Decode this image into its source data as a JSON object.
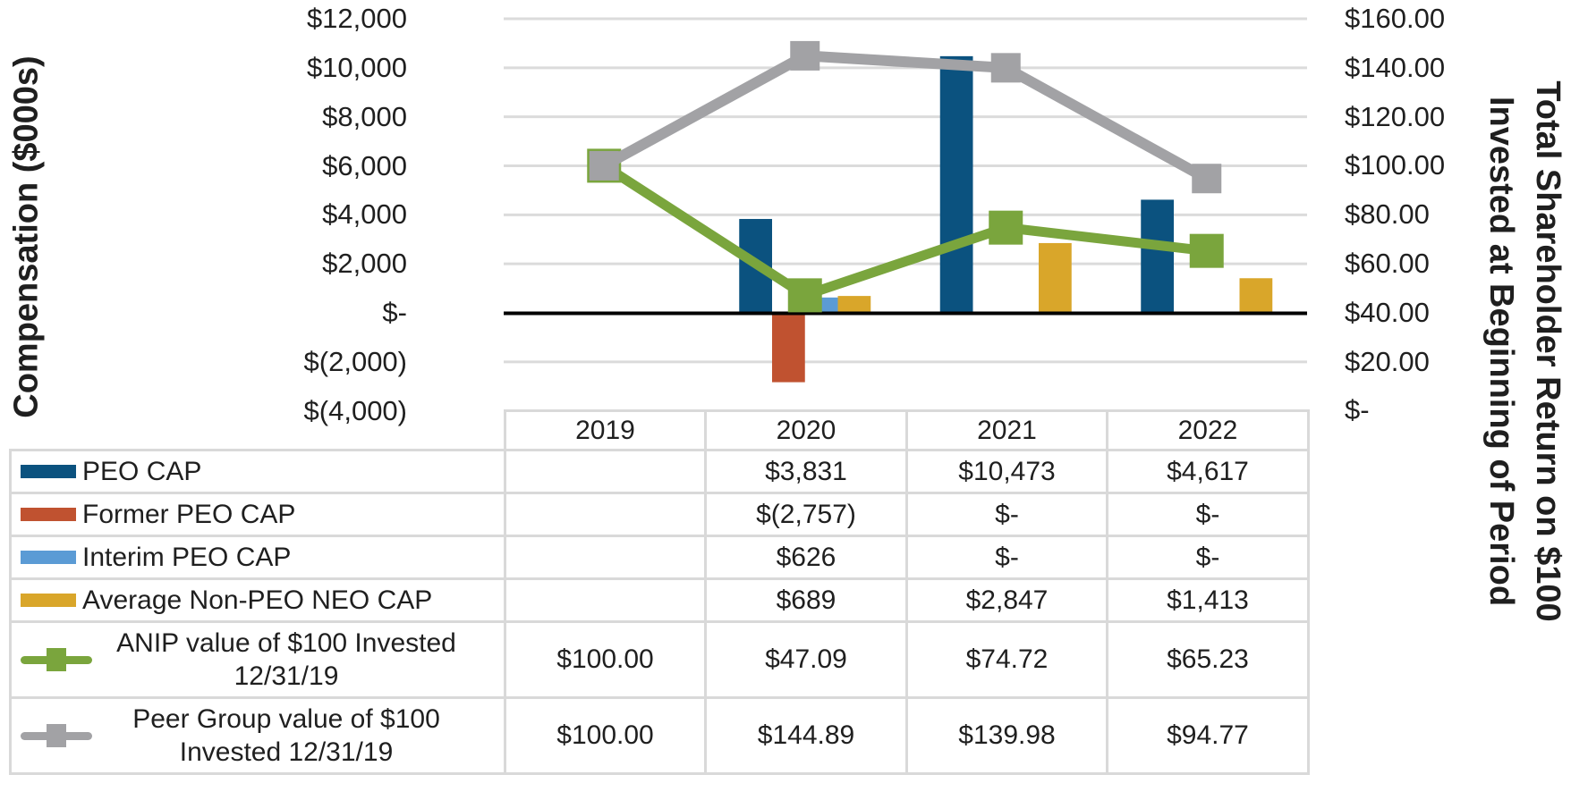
{
  "left_axis": {
    "title": "Compensation ($000s)",
    "tick_labels": [
      "$12,000",
      "$10,000",
      "$8,000",
      "$6,000",
      "$4,000",
      "$2,000",
      "$-",
      "$(2,000)",
      "$(4,000)"
    ],
    "tick_values": [
      12000,
      10000,
      8000,
      6000,
      4000,
      2000,
      0,
      -2000,
      -4000
    ],
    "range": [
      -4000,
      12000
    ]
  },
  "right_axis": {
    "title_line1": "Total Shareholder Return on $100",
    "title_line2": "Invested at Beginning of Period",
    "tick_labels": [
      "$160.00",
      "$140.00",
      "$120.00",
      "$100.00",
      "$80.00",
      "$60.00",
      "$40.00",
      "$20.00",
      "$-"
    ],
    "tick_values": [
      160,
      140,
      120,
      100,
      80,
      60,
      40,
      20,
      0
    ],
    "range": [
      0,
      160
    ]
  },
  "chart_data": {
    "type": "combo bar+line",
    "categories": [
      "2019",
      "2020",
      "2021",
      "2022"
    ],
    "bar_series": [
      {
        "name": "PEO CAP",
        "color": "#0B527F",
        "axis": "left",
        "values": [
          null,
          3831,
          10473,
          4617
        ],
        "labels": [
          "",
          "$3,831",
          "$10,473",
          "$4,617"
        ]
      },
      {
        "name": "Former PEO CAP",
        "color": "#C05230",
        "axis": "left",
        "values": [
          null,
          -2757,
          0,
          0
        ],
        "labels": [
          "",
          "$(2,757)",
          "$-",
          "$-"
        ]
      },
      {
        "name": "Interim PEO CAP",
        "color": "#5B9BD5",
        "axis": "left",
        "values": [
          null,
          626,
          0,
          0
        ],
        "labels": [
          "",
          "$626",
          "$-",
          "$-"
        ]
      },
      {
        "name": "Average Non-PEO NEO CAP",
        "color": "#D9A62A",
        "axis": "left",
        "values": [
          null,
          689,
          2847,
          1413
        ],
        "labels": [
          "",
          "$689",
          "$2,847",
          "$1,413"
        ]
      }
    ],
    "line_series": [
      {
        "name": "ANIP value of $100 Invested 12/31/19",
        "color": "#7AA53D",
        "axis": "right",
        "values": [
          100,
          47.09,
          74.72,
          65.23
        ],
        "labels": [
          "$100.00",
          "$47.09",
          "$74.72",
          "$65.23"
        ]
      },
      {
        "name": "Peer Group value of $100 Invested 12/31/19",
        "color": "#A2A2A5",
        "axis": "right",
        "values": [
          100,
          144.89,
          139.98,
          94.77
        ],
        "labels": [
          "$100.00",
          "$144.89",
          "$139.98",
          "$94.77"
        ]
      }
    ],
    "left_axis_range": [
      -4000,
      12000
    ],
    "right_axis_range": [
      0,
      160
    ],
    "gridlines": {
      "color": "#DBDBDB",
      "left_values": [
        12000,
        10000,
        8000,
        6000,
        4000,
        2000,
        -2000
      ]
    },
    "axis_line_color": "#000000",
    "legend_position": "table-left-column",
    "table_border_color": "#D9D9D9"
  }
}
